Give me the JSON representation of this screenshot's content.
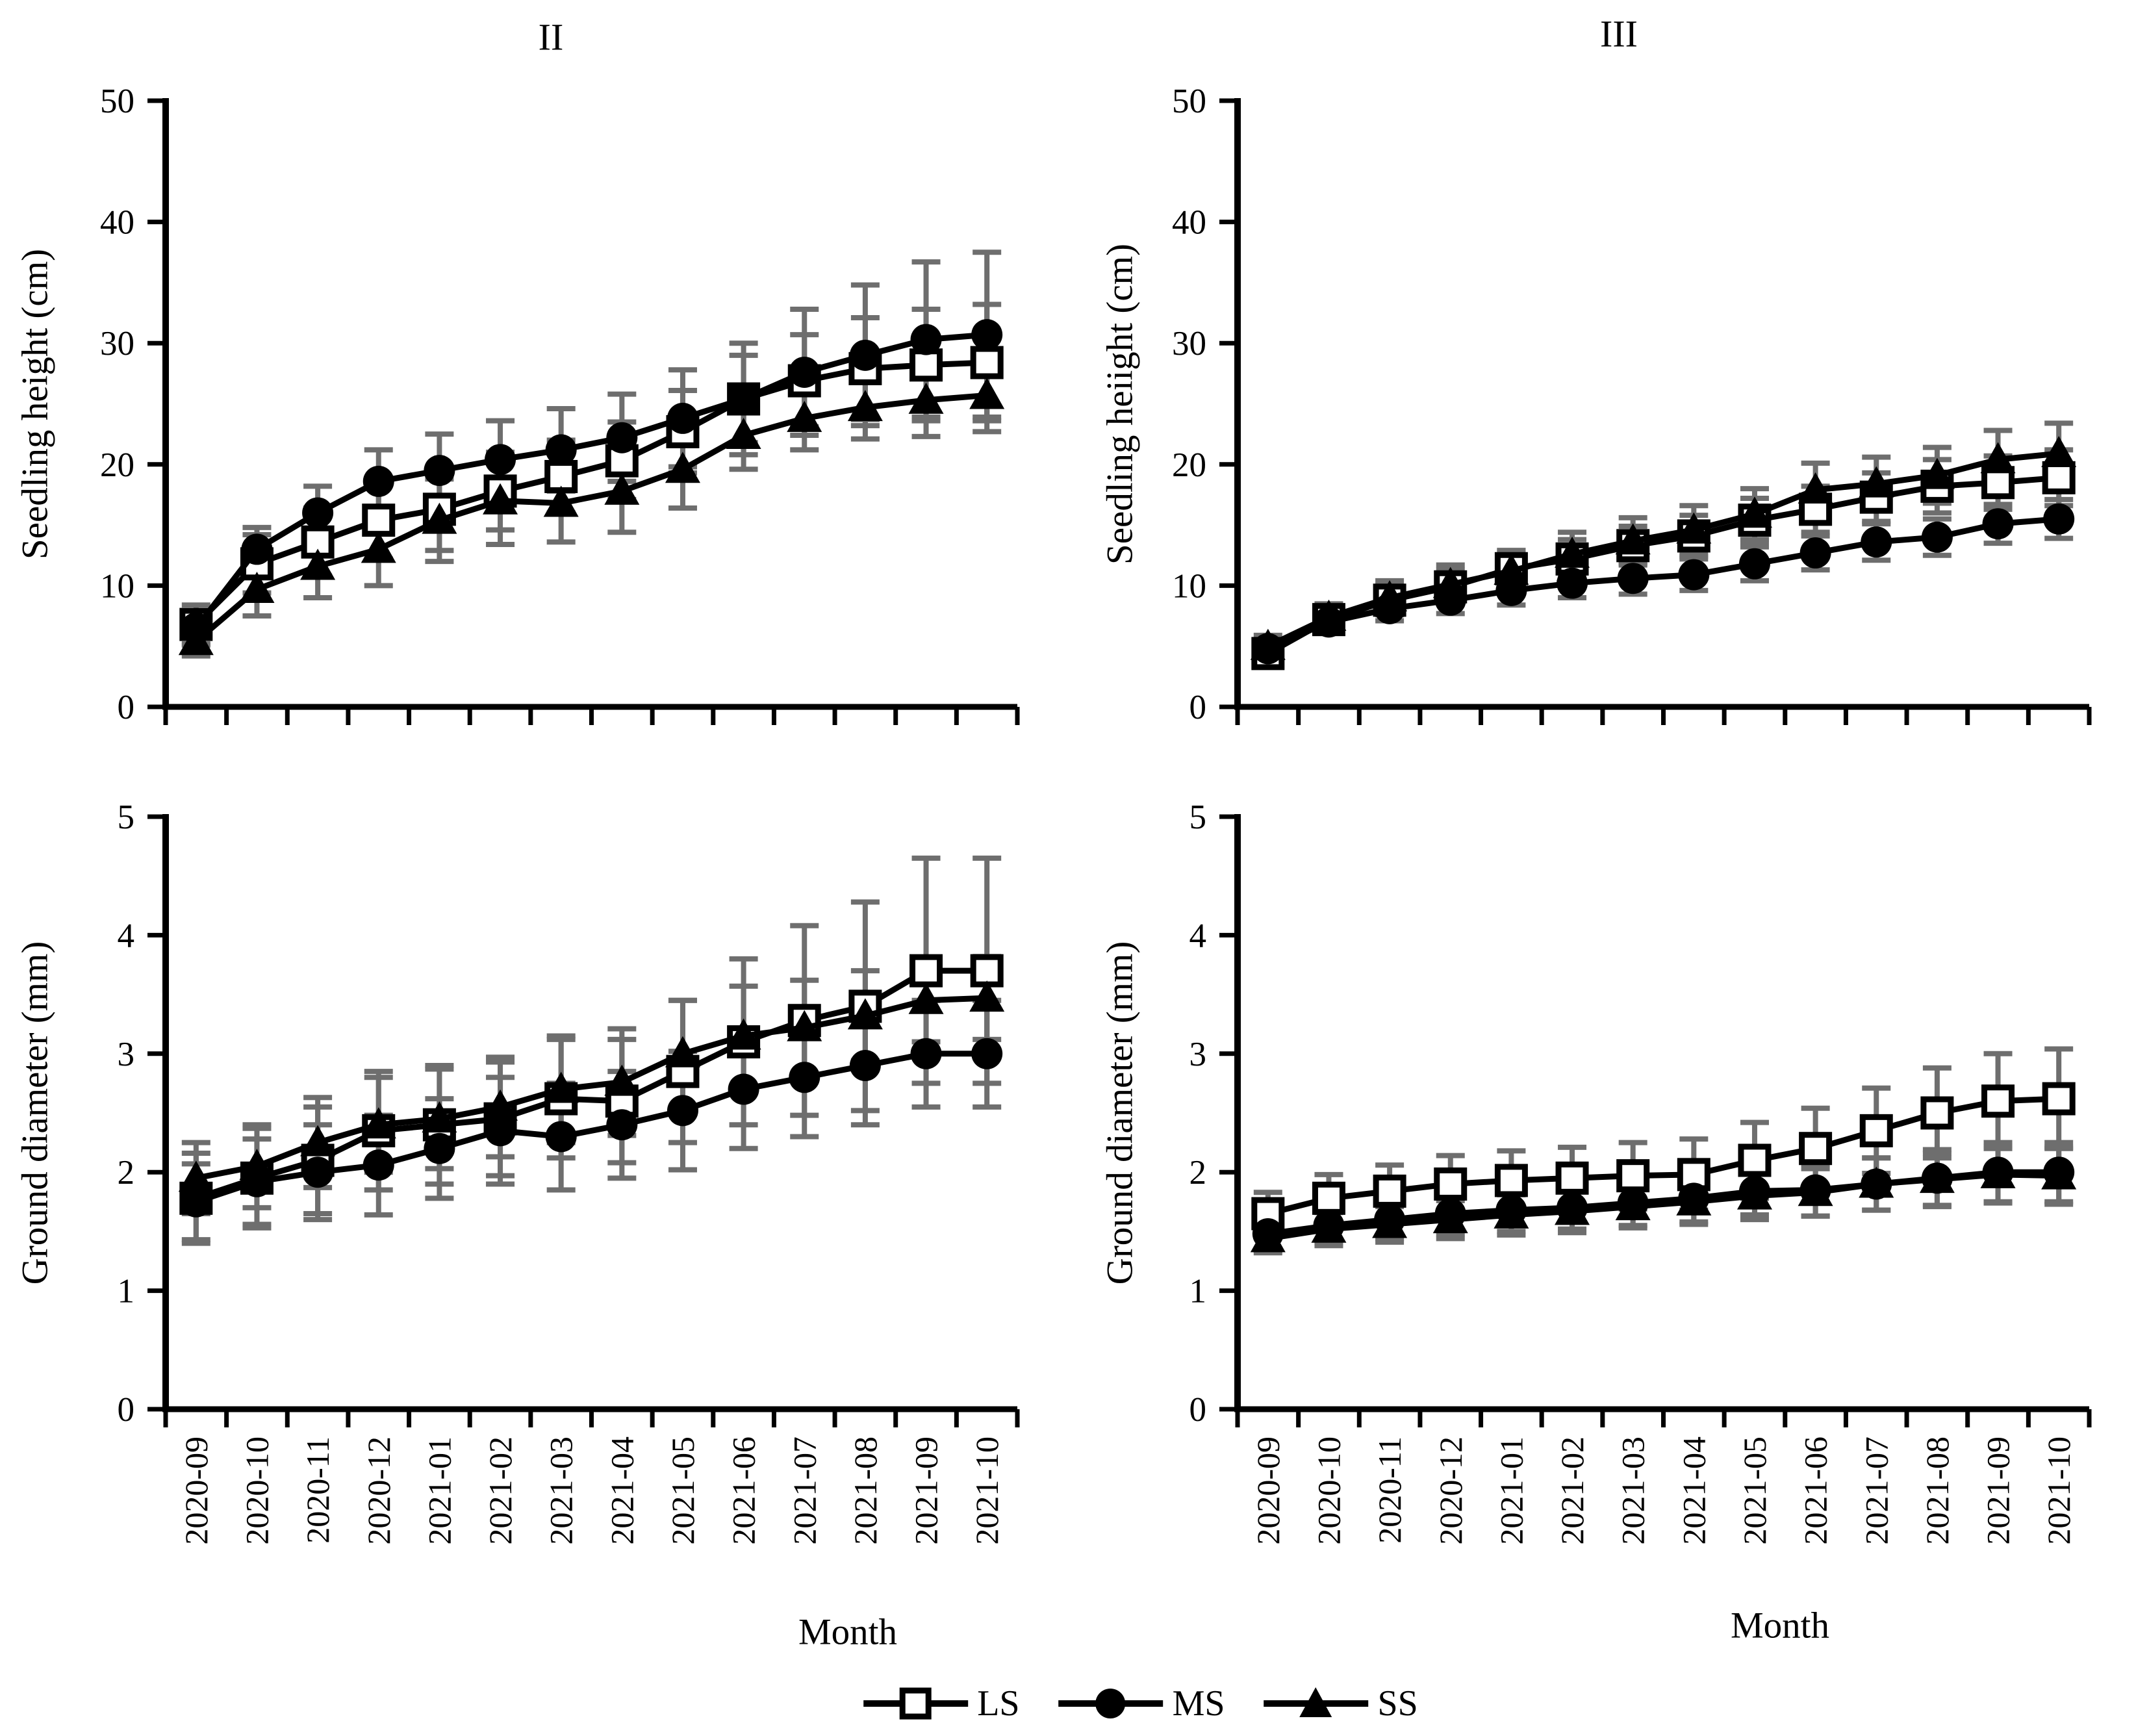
{
  "page": {
    "background": "#ffffff"
  },
  "titles": {
    "left": "II",
    "right": "III"
  },
  "axis_labels": {
    "top_left_y": "Seedling height (cm)",
    "top_right_y": "Seedling heiight (cm)",
    "bottom_left_y": "Ground diameter (mm)",
    "bottom_right_y": "Ground diameter (mm)",
    "x_left": "Month",
    "x_right": "Month"
  },
  "legend": {
    "items": [
      {
        "label": "LS",
        "marker": "open-square"
      },
      {
        "label": "MS",
        "marker": "filled-circle"
      },
      {
        "label": "SS",
        "marker": "filled-triangle"
      }
    ]
  },
  "colors": {
    "line": "#000000",
    "marker_fill": "#000000",
    "open_marker_fill": "#ffffff",
    "error_bar": "#6e6e6e",
    "axis": "#000000",
    "background": "#ffffff"
  },
  "chart_data": [
    {
      "type": "line",
      "panel": "top-left",
      "title": "II",
      "ylabel": "Seedling height (cm)",
      "xlabel": "",
      "ylim": [
        0,
        50
      ],
      "yticks": [
        0,
        10,
        20,
        30,
        40,
        50
      ],
      "grid": false,
      "show_x_labels": false,
      "categories": [
        "2020-09",
        "2020-10",
        "2020-11",
        "2020-12",
        "2021-01",
        "2021-02",
        "2021-03",
        "2021-04",
        "2021-05",
        "2021-06",
        "2021-07",
        "2021-08",
        "2021-09",
        "2021-10"
      ],
      "series": [
        {
          "name": "LS",
          "marker": "open-square",
          "values": [
            6.8,
            11.8,
            13.6,
            15.4,
            16.3,
            17.8,
            19.0,
            20.3,
            22.7,
            25.4,
            26.9,
            27.9,
            28.2,
            28.4
          ],
          "errors": [
            1.6,
            2.4,
            2.8,
            3.2,
            3.4,
            3.2,
            3.0,
            3.2,
            3.4,
            3.6,
            3.8,
            4.2,
            4.6,
            4.8
          ]
        },
        {
          "name": "MS",
          "marker": "filled-circle",
          "values": [
            6.5,
            13.0,
            16.0,
            18.6,
            19.5,
            20.4,
            21.2,
            22.2,
            23.8,
            25.4,
            27.6,
            29.0,
            30.3,
            30.7
          ],
          "errors": [
            1.4,
            1.8,
            2.2,
            2.6,
            3.0,
            3.2,
            3.4,
            3.6,
            4.0,
            4.6,
            5.2,
            5.8,
            6.4,
            6.8
          ]
        },
        {
          "name": "SS",
          "marker": "filled-triangle",
          "values": [
            5.4,
            9.7,
            11.6,
            13.0,
            15.4,
            17.0,
            16.8,
            17.8,
            19.6,
            22.4,
            23.8,
            24.7,
            25.3,
            25.7
          ],
          "errors": [
            1.2,
            2.2,
            2.6,
            3.0,
            3.4,
            3.6,
            3.2,
            3.4,
            3.2,
            2.8,
            2.6,
            2.6,
            3.0,
            3.0
          ]
        }
      ]
    },
    {
      "type": "line",
      "panel": "top-right",
      "title": "III",
      "ylabel": "Seedling heiight (cm)",
      "xlabel": "",
      "ylim": [
        0,
        50
      ],
      "yticks": [
        0,
        10,
        20,
        30,
        40,
        50
      ],
      "grid": false,
      "show_x_labels": false,
      "categories": [
        "2020-09",
        "2020-10",
        "2020-11",
        "2020-12",
        "2021-01",
        "2021-02",
        "2021-03",
        "2021-04",
        "2021-05",
        "2021-06",
        "2021-07",
        "2021-08",
        "2021-09",
        "2021-10"
      ],
      "series": [
        {
          "name": "LS",
          "marker": "open-square",
          "values": [
            4.4,
            7.2,
            8.8,
            9.9,
            11.4,
            12.2,
            13.3,
            14.1,
            15.4,
            16.3,
            17.3,
            18.2,
            18.5,
            18.9
          ],
          "errors": [
            0.8,
            1.0,
            1.2,
            1.4,
            1.5,
            1.6,
            1.6,
            1.7,
            1.8,
            1.9,
            2.0,
            2.2,
            2.2,
            2.3
          ]
        },
        {
          "name": "MS",
          "marker": "filled-circle",
          "values": [
            4.8,
            7.0,
            8.1,
            8.8,
            9.6,
            10.2,
            10.6,
            10.9,
            11.8,
            12.7,
            13.6,
            14.0,
            15.1,
            15.5
          ],
          "errors": [
            0.7,
            0.8,
            1.0,
            1.1,
            1.2,
            1.2,
            1.3,
            1.3,
            1.4,
            1.4,
            1.5,
            1.5,
            1.6,
            1.6
          ]
        },
        {
          "name": "SS",
          "marker": "filled-triangle",
          "values": [
            5.0,
            7.4,
            9.0,
            10.1,
            11.2,
            12.6,
            13.7,
            14.6,
            15.9,
            17.9,
            18.4,
            19.1,
            20.4,
            20.9
          ],
          "errors": [
            0.9,
            1.1,
            1.4,
            1.6,
            1.7,
            1.8,
            1.9,
            2.0,
            2.1,
            2.2,
            2.2,
            2.3,
            2.4,
            2.5
          ]
        }
      ]
    },
    {
      "type": "line",
      "panel": "bottom-left",
      "title": "",
      "ylabel": "Ground diameter (mm)",
      "xlabel": "Month",
      "ylim": [
        0,
        5
      ],
      "yticks": [
        0,
        1,
        2,
        3,
        4,
        5
      ],
      "grid": false,
      "show_x_labels": true,
      "categories": [
        "2020-09",
        "2020-10",
        "2020-11",
        "2020-12",
        "2021-01",
        "2021-02",
        "2021-03",
        "2021-04",
        "2021-05",
        "2021-06",
        "2021-07",
        "2021-08",
        "2021-09",
        "2021-10"
      ],
      "series": [
        {
          "name": "LS",
          "marker": "open-square",
          "values": [
            1.78,
            1.95,
            2.1,
            2.35,
            2.4,
            2.45,
            2.62,
            2.6,
            2.85,
            3.1,
            3.28,
            3.4,
            3.7,
            3.7
          ],
          "errors": [
            0.38,
            0.42,
            0.45,
            0.5,
            0.5,
            0.48,
            0.5,
            0.52,
            0.6,
            0.7,
            0.8,
            0.88,
            0.95,
            0.95
          ]
        },
        {
          "name": "MS",
          "marker": "filled-circle",
          "values": [
            1.75,
            1.92,
            2.0,
            2.06,
            2.2,
            2.35,
            2.3,
            2.4,
            2.52,
            2.7,
            2.8,
            2.9,
            3.0,
            3.0
          ],
          "errors": [
            0.32,
            0.36,
            0.4,
            0.42,
            0.42,
            0.45,
            0.45,
            0.45,
            0.5,
            0.5,
            0.5,
            0.5,
            0.45,
            0.45
          ]
        },
        {
          "name": "SS",
          "marker": "filled-triangle",
          "values": [
            1.95,
            2.05,
            2.25,
            2.4,
            2.45,
            2.55,
            2.7,
            2.76,
            3.0,
            3.15,
            3.22,
            3.32,
            3.45,
            3.47
          ],
          "errors": [
            0.3,
            0.35,
            0.38,
            0.4,
            0.42,
            0.42,
            0.45,
            0.45,
            0.45,
            0.42,
            0.4,
            0.38,
            0.35,
            0.35
          ]
        }
      ]
    },
    {
      "type": "line",
      "panel": "bottom-right",
      "title": "",
      "ylabel": "Ground diameter (mm)",
      "xlabel": "Month",
      "ylim": [
        0,
        5
      ],
      "yticks": [
        0,
        1,
        2,
        3,
        4,
        5
      ],
      "grid": false,
      "show_x_labels": true,
      "categories": [
        "2020-09",
        "2020-10",
        "2020-11",
        "2020-12",
        "2021-01",
        "2021-02",
        "2021-03",
        "2021-04",
        "2021-05",
        "2021-06",
        "2021-07",
        "2021-08",
        "2021-09",
        "2021-10"
      ],
      "series": [
        {
          "name": "LS",
          "marker": "open-square",
          "values": [
            1.65,
            1.78,
            1.84,
            1.9,
            1.93,
            1.95,
            1.97,
            1.98,
            2.1,
            2.2,
            2.35,
            2.5,
            2.6,
            2.62
          ],
          "errors": [
            0.18,
            0.2,
            0.22,
            0.24,
            0.25,
            0.26,
            0.28,
            0.3,
            0.32,
            0.34,
            0.36,
            0.38,
            0.4,
            0.42
          ]
        },
        {
          "name": "MS",
          "marker": "filled-circle",
          "values": [
            1.48,
            1.55,
            1.6,
            1.65,
            1.68,
            1.7,
            1.74,
            1.78,
            1.84,
            1.85,
            1.9,
            1.95,
            2.0,
            2.0
          ],
          "errors": [
            0.14,
            0.15,
            0.16,
            0.17,
            0.18,
            0.18,
            0.19,
            0.2,
            0.2,
            0.22,
            0.22,
            0.24,
            0.25,
            0.25
          ]
        },
        {
          "name": "SS",
          "marker": "filled-triangle",
          "values": [
            1.44,
            1.52,
            1.56,
            1.6,
            1.64,
            1.67,
            1.71,
            1.75,
            1.8,
            1.83,
            1.9,
            1.94,
            1.98,
            1.97
          ],
          "errors": [
            0.12,
            0.14,
            0.15,
            0.16,
            0.17,
            0.18,
            0.18,
            0.19,
            0.2,
            0.2,
            0.22,
            0.22,
            0.24,
            0.24
          ]
        }
      ]
    }
  ]
}
